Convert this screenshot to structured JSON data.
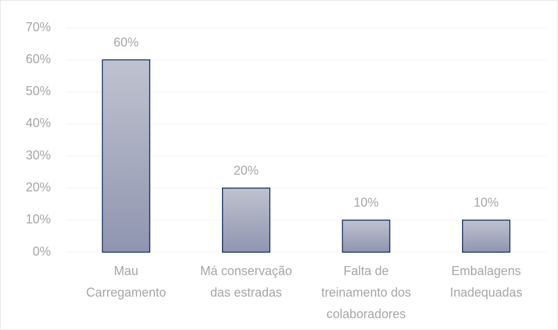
{
  "chart_data": {
    "type": "bar",
    "categories": [
      [
        "Mau",
        "Carregamento"
      ],
      [
        "Má conservação",
        "das estradas"
      ],
      [
        "Falta de",
        "treinamento dos",
        "colaboradores"
      ],
      [
        "Embalagens",
        "Inadequadas"
      ]
    ],
    "values": [
      60,
      20,
      10,
      10
    ],
    "value_labels": [
      "60%",
      "20%",
      "10%",
      "10%"
    ],
    "color": "#1f3864",
    "ylim": [
      0,
      70
    ],
    "yticks": [
      {
        "value": 0,
        "label": "0%"
      },
      {
        "value": 10,
        "label": "10%"
      },
      {
        "value": 20,
        "label": "20%"
      },
      {
        "value": 30,
        "label": "30%"
      },
      {
        "value": 40,
        "label": "40%"
      },
      {
        "value": 50,
        "label": "50%"
      },
      {
        "value": 60,
        "label": "60%"
      },
      {
        "value": 70,
        "label": "70%"
      }
    ],
    "grid": true
  }
}
